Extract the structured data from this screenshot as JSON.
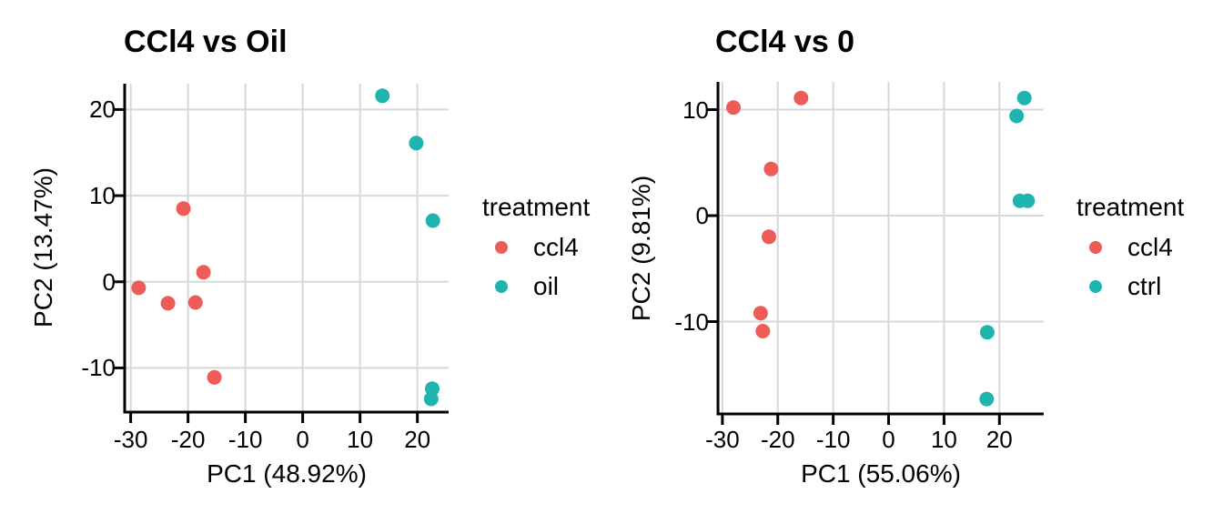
{
  "style": {
    "background": "#FFFFFF",
    "grid_color": "#D8D8D8",
    "axis_color": "#000000",
    "text_color": "#000000",
    "point_radius": 8
  },
  "chart_data": [
    {
      "type": "scatter",
      "title": "CCl4 vs Oil",
      "xlabel": "PC1 (48.92%)",
      "ylabel": "PC2 (13.47%)",
      "legend_title": "treatment",
      "legend_position": "right",
      "grid": true,
      "xlim": [
        -31.05,
        25.45
      ],
      "ylim": [
        -15.13,
        23.0
      ],
      "xticks": [
        -30,
        -20,
        -10,
        0,
        10,
        20
      ],
      "yticks": [
        -10,
        0,
        10,
        20
      ],
      "series": [
        {
          "name": "ccl4",
          "color": "#EE5C58",
          "points": [
            [
              -28.6,
              -0.7
            ],
            [
              -23.5,
              -2.5
            ],
            [
              -20.8,
              8.5
            ],
            [
              -18.7,
              -2.4
            ],
            [
              -17.3,
              1.1
            ],
            [
              -15.4,
              -11.1
            ]
          ]
        },
        {
          "name": "oil",
          "color": "#1FB4B0",
          "points": [
            [
              13.9,
              21.6
            ],
            [
              19.8,
              16.1
            ],
            [
              22.7,
              7.1
            ],
            [
              22.6,
              -12.4
            ],
            [
              22.4,
              -13.6
            ]
          ]
        }
      ]
    },
    {
      "type": "scatter",
      "title": "CCl4 vs 0",
      "xlabel": "PC1 (55.06%)",
      "ylabel": "PC2 (9.81%)",
      "legend_title": "treatment",
      "legend_position": "right",
      "grid": true,
      "xlim": [
        -30.8,
        28.0
      ],
      "ylim": [
        -18.71,
        12.62
      ],
      "xticks": [
        -30,
        -20,
        -10,
        0,
        10,
        20
      ],
      "yticks": [
        -10,
        0,
        10
      ],
      "series": [
        {
          "name": "ccl4",
          "color": "#EE5C58",
          "points": [
            [
              -28.0,
              10.2
            ],
            [
              -21.2,
              4.4
            ],
            [
              -21.6,
              -2.0
            ],
            [
              -23.1,
              -9.2
            ],
            [
              -22.7,
              -10.9
            ],
            [
              -15.8,
              11.1
            ]
          ]
        },
        {
          "name": "ctrl",
          "color": "#1FB4B0",
          "points": [
            [
              24.5,
              11.1
            ],
            [
              23.1,
              9.4
            ],
            [
              23.7,
              1.4
            ],
            [
              25.1,
              1.4
            ],
            [
              17.8,
              -11.0
            ],
            [
              17.7,
              -17.3
            ]
          ]
        }
      ]
    }
  ]
}
